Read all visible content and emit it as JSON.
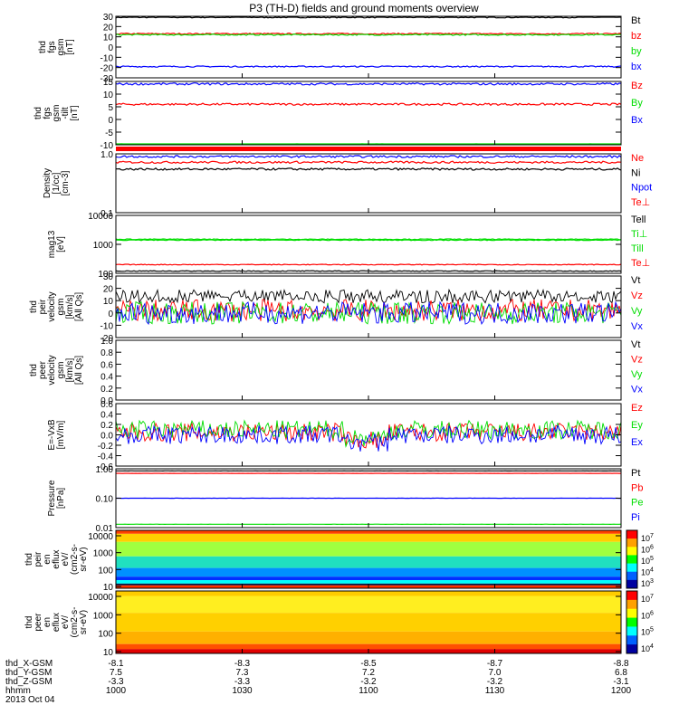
{
  "title": "P3 (TH-D) fields and ground moments overview",
  "colors": {
    "black": "#000000",
    "red": "#ff0000",
    "green": "#00dd00",
    "blue": "#0000ff"
  },
  "date": "2013 Oct 04",
  "ephem": {
    "labels": [
      "thd_X-GSM",
      "thd_Y-GSM",
      "thd_Z-GSM",
      "hhmm"
    ],
    "rows": [
      [
        "-8.1",
        "-8.3",
        "-8.5",
        "-8.7",
        "-8.8"
      ],
      [
        "7.5",
        "7.3",
        "7.2",
        "7.0",
        "6.8"
      ],
      [
        "-3.3",
        "-3.3",
        "-3.2",
        "-3.2",
        "-3.1"
      ],
      [
        "1000",
        "1030",
        "1100",
        "1130",
        "1200"
      ]
    ]
  },
  "chart_data": [
    {
      "type": "line",
      "ylabel": [
        "thd",
        "fgs",
        "gsm",
        "[nT]"
      ],
      "ticks": [
        "30",
        "20",
        "10",
        "0",
        "-10",
        "-20",
        "-30"
      ],
      "series": [
        {
          "name": "Bt",
          "color": "black",
          "value": 29
        },
        {
          "name": "bz",
          "color": "red",
          "value": 13
        },
        {
          "name": "by",
          "color": "green",
          "value": 12
        },
        {
          "name": "bx",
          "color": "blue",
          "value": -19
        }
      ]
    },
    {
      "type": "line",
      "ylabel": [
        "thd",
        "fgs",
        "gsm",
        "-tilt",
        "[nT]"
      ],
      "ticks": [
        "15",
        "10",
        "5",
        "0",
        "-5",
        "-10"
      ],
      "series": [
        {
          "name": "Bz",
          "color": "red",
          "value": 6
        },
        {
          "name": "By",
          "color": "green",
          "value": -10
        },
        {
          "name": "Bx",
          "color": "blue",
          "value": 14
        }
      ]
    },
    {
      "type": "line",
      "scale": "log",
      "ylabel": [
        "Density",
        "[1/cc]",
        "[cm-3]"
      ],
      "ticks": [
        "1.0",
        "0.1"
      ],
      "series": [
        {
          "name": "Ne",
          "color": "red",
          "value": 0.72
        },
        {
          "name": "Ni",
          "color": "black",
          "value": 0.55
        },
        {
          "name": "Npot",
          "color": "blue",
          "value": 0.9
        },
        {
          "name": "Te⊥",
          "color": "red"
        }
      ]
    },
    {
      "type": "line",
      "scale": "log",
      "ylabel": [
        "mag13",
        "[eV]"
      ],
      "ticks": [
        "10000",
        "1000",
        "100"
      ],
      "series": [
        {
          "name": "Tell",
          "color": "black",
          "value": 120
        },
        {
          "name": "Ti⊥",
          "color": "green",
          "value": 1500
        },
        {
          "name": "Till",
          "color": "green",
          "value": 1400
        },
        {
          "name": "Te⊥",
          "color": "red",
          "value": 200
        }
      ]
    },
    {
      "type": "line",
      "ylabel": [
        "thd",
        "peir",
        "velocity",
        "gsm",
        "[km/s]",
        "[All Qs]"
      ],
      "ticks": [
        "30",
        "20",
        "10",
        "0",
        "-10",
        "-20"
      ],
      "series": [
        {
          "name": "Vt",
          "color": "black",
          "value": 8
        },
        {
          "name": "Vz",
          "color": "red",
          "value": 2
        },
        {
          "name": "Vy",
          "color": "green",
          "value": 0
        },
        {
          "name": "Vx",
          "color": "blue",
          "value": 0
        }
      ]
    },
    {
      "type": "line",
      "ylabel": [
        "thd",
        "peer",
        "velocity",
        "gsm",
        "[km/s]",
        "[All Qs]"
      ],
      "ticks": [
        "1.0",
        "0.8",
        "0.6",
        "0.4",
        "0.2",
        "0.0"
      ],
      "series": [
        {
          "name": "Vt",
          "color": "black"
        },
        {
          "name": "Vz",
          "color": "red"
        },
        {
          "name": "Vy",
          "color": "green"
        },
        {
          "name": "Vx",
          "color": "blue"
        }
      ]
    },
    {
      "type": "line",
      "ylabel": [
        "E=-VxB",
        "[mV/m]"
      ],
      "ticks": [
        "0.6",
        "0.4",
        "0.2",
        "0.0",
        "-0.2",
        "-0.4",
        "-0.6"
      ],
      "series": [
        {
          "name": "Ez",
          "color": "red",
          "value": 0.05
        },
        {
          "name": "Ey",
          "color": "green",
          "value": 0.1
        },
        {
          "name": "Ex",
          "color": "blue",
          "value": 0.0
        }
      ]
    },
    {
      "type": "line",
      "scale": "log",
      "ylabel": [
        "Pressure",
        "[nPa]"
      ],
      "ticks": [
        "1.00",
        "0.10",
        "0.01"
      ],
      "series": [
        {
          "name": "Pt",
          "color": "black",
          "value": 0.85
        },
        {
          "name": "Pb",
          "color": "red",
          "value": 0.7
        },
        {
          "name": "Pe",
          "color": "green",
          "value": 0.013
        },
        {
          "name": "Pi",
          "color": "blue",
          "value": 0.1
        }
      ]
    },
    {
      "type": "heatmap",
      "ylabel": [
        "thd",
        "peir",
        "en",
        "eflux",
        "eV/",
        "(cm2-s-",
        "sr-eV)"
      ],
      "ticks": [
        "10000",
        "1000",
        "100",
        "10"
      ],
      "colorbar": [
        "10^7",
        "10^6",
        "10^5",
        "10^4",
        "10^3"
      ]
    },
    {
      "type": "heatmap",
      "ylabel": [
        "thd",
        "peer",
        "en",
        "eflux",
        "eV/",
        "(cm2-s-",
        "sr-eV)"
      ],
      "ticks": [
        "10000",
        "1000",
        "100",
        "10"
      ],
      "colorbar": [
        "10^7",
        "10^6",
        "10^5",
        "10^4"
      ]
    }
  ]
}
